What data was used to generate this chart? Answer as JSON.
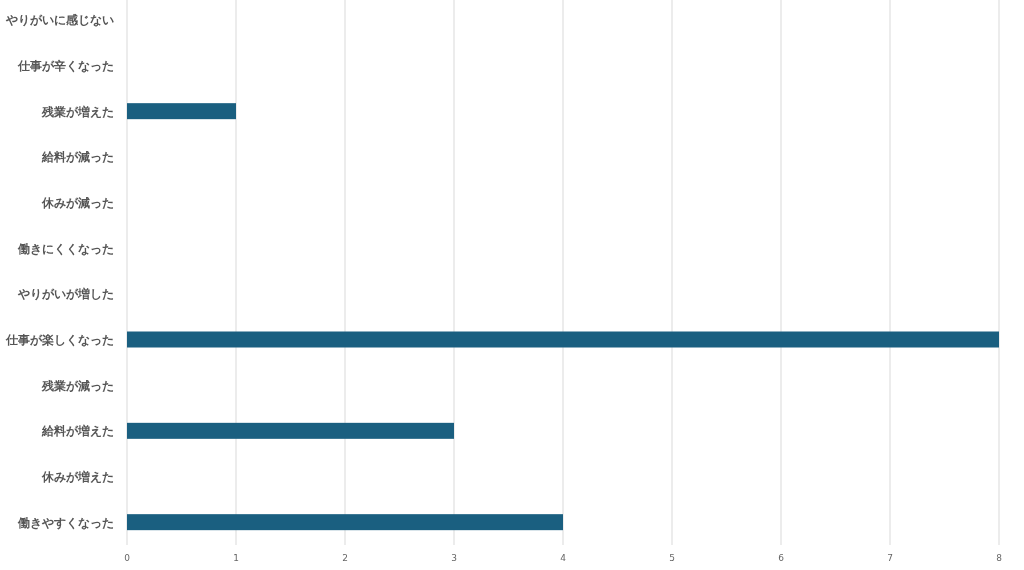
{
  "chart_data": {
    "type": "bar",
    "orientation": "horizontal",
    "categories": [
      "やりがいに感じない",
      "仕事が辛くなった",
      "残業が増えた",
      "給料が減った",
      "休みが減った",
      "働きにくくなった",
      "やりがいが増した",
      "仕事が楽しくなった",
      "残業が減った",
      "給料が増えた",
      "休みが増えた",
      "働きやすくなった"
    ],
    "values": [
      0,
      0,
      1,
      0,
      0,
      0,
      0,
      8,
      0,
      3,
      0,
      4
    ],
    "color": "#1a5f80",
    "xlim": [
      0,
      8
    ],
    "xticks": [
      0,
      1,
      2,
      3,
      4,
      5,
      6,
      7,
      8
    ],
    "grid": "x"
  }
}
